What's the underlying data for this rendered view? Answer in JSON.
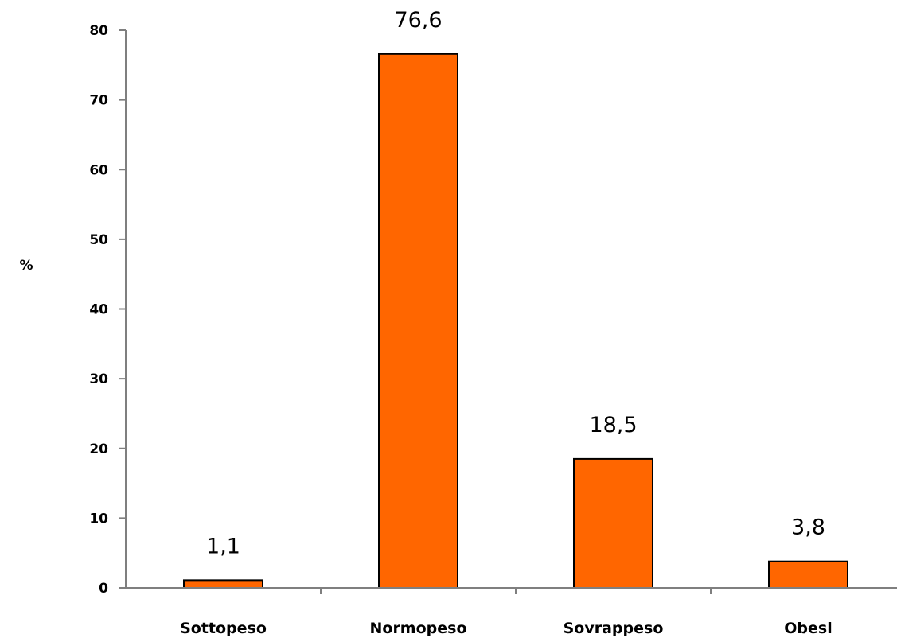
{
  "chart_data": {
    "type": "bar",
    "categories": [
      "Sottopeso",
      "Normopeso",
      "Sovrappeso",
      "Obesl"
    ],
    "values": [
      1.1,
      76.6,
      18.5,
      3.8
    ],
    "data_labels": [
      "1,1",
      "76,6",
      "18,5",
      "3,8"
    ],
    "title": "",
    "xlabel": "",
    "ylabel": "%",
    "ylim": [
      0,
      80
    ],
    "yticks": [
      0,
      10,
      20,
      30,
      40,
      50,
      60,
      70,
      80
    ],
    "grid": false,
    "legend": "none",
    "bar_color": "#FF6600",
    "bar_edge_color": "#000000"
  }
}
